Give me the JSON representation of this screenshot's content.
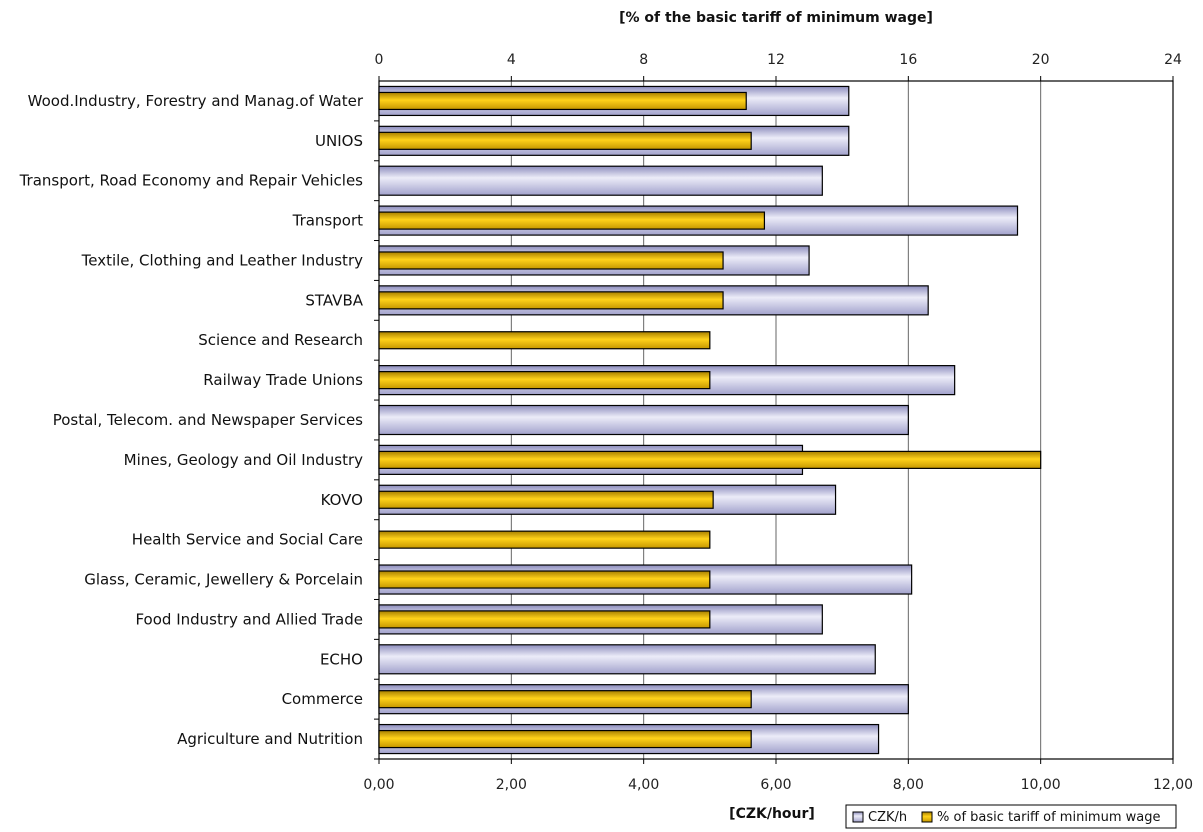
{
  "chart_data": {
    "type": "bar",
    "orientation": "horizontal",
    "top_axis_label": "[% of the basic tariff of minimum wage]",
    "bottom_axis_label": "[CZK/hour]",
    "top_axis": {
      "min": 0,
      "max": 24,
      "ticks": [
        "0",
        "4",
        "8",
        "12",
        "16",
        "20",
        "24"
      ]
    },
    "bottom_axis": {
      "min": 0,
      "max": 12,
      "ticks": [
        "0,00",
        "2,00",
        "4,00",
        "6,00",
        "8,00",
        "10,00",
        "12,00"
      ]
    },
    "grid": true,
    "legend_position": "bottom-right",
    "categories": [
      "Wood.Industry, Forestry and Manag.of Water",
      "UNIOS",
      "Transport, Road Economy and Repair Vehicles",
      "Transport",
      "Textile, Clothing and Leather Industry",
      "STAVBA",
      "Science and Research",
      "Railway Trade Unions",
      "Postal, Telecom. and Newspaper Services",
      "Mines, Geology and Oil Industry",
      "KOVO",
      "Health Service and Social Care",
      "Glass, Ceramic, Jewellery & Porcelain",
      "Food Industry and Allied Trade",
      "ECHO",
      "Commerce",
      "Agriculture and Nutrition"
    ],
    "series": [
      {
        "name": "CZK/h",
        "axis": "bottom",
        "color": "#b8b8d8",
        "values": [
          7.1,
          7.1,
          6.7,
          9.65,
          6.5,
          8.3,
          null,
          8.7,
          8.0,
          6.4,
          6.9,
          null,
          8.05,
          6.7,
          7.5,
          8.0,
          7.55
        ]
      },
      {
        "name": "% of basic tariff of minimum wage",
        "axis": "top",
        "color": "#e0b000",
        "values": [
          11.1,
          11.25,
          null,
          11.65,
          10.4,
          10.4,
          10.0,
          10.0,
          null,
          20.0,
          10.1,
          10.0,
          10.0,
          10.0,
          null,
          11.25,
          11.25
        ]
      }
    ]
  }
}
